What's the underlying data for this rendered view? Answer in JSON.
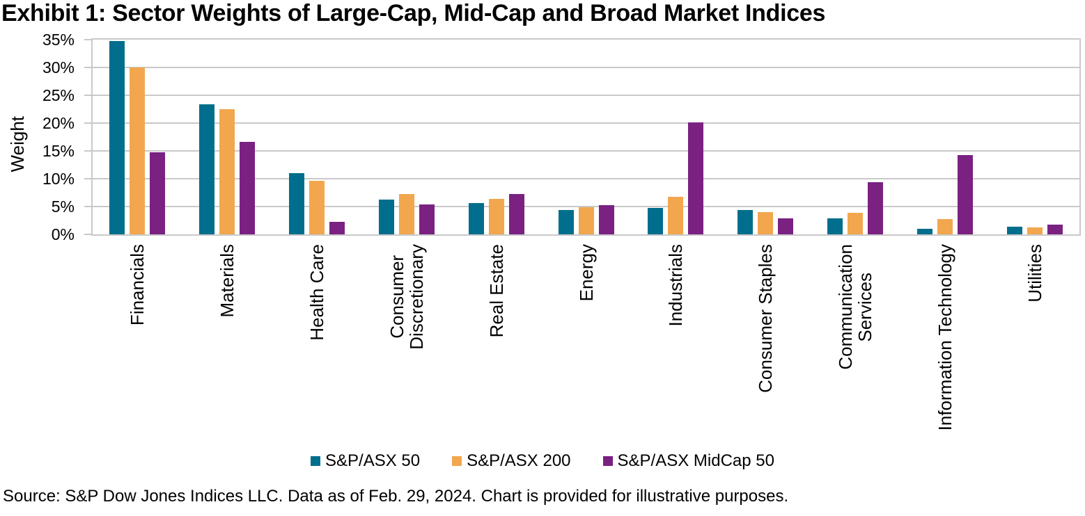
{
  "chart_data": {
    "type": "bar",
    "title": "Exhibit 1: Sector Weights of Large-Cap, Mid-Cap and Broad Market Indices",
    "xlabel": "",
    "ylabel": "Weight",
    "ylim": [
      0,
      35
    ],
    "ytick_step": 5,
    "ytick_labels": [
      "35%",
      "30%",
      "25%",
      "20%",
      "15%",
      "10%",
      "5%",
      "0%"
    ],
    "grid": true,
    "legend_position": "bottom",
    "categories": [
      "Financials",
      "Materials",
      "Health Care",
      "Consumer\nDiscretionary",
      "Real Estate",
      "Energy",
      "Industrials",
      "Consumer Staples",
      "Communication\nServices",
      "Information Technology",
      "Utilities"
    ],
    "series": [
      {
        "name": "S&P/ASX 50",
        "color": "#006E8C",
        "values": [
          34.8,
          23.4,
          11.0,
          6.3,
          5.6,
          4.4,
          4.8,
          4.4,
          2.9,
          1.0,
          1.4
        ]
      },
      {
        "name": "S&P/ASX 200",
        "color": "#F2A74E",
        "values": [
          30.0,
          22.5,
          9.6,
          7.3,
          6.4,
          4.9,
          6.8,
          4.0,
          3.9,
          2.7,
          1.3
        ]
      },
      {
        "name": "S&P/ASX MidCap 50",
        "color": "#7A2182",
        "values": [
          14.8,
          16.6,
          2.3,
          5.4,
          7.2,
          5.3,
          20.1,
          2.9,
          9.4,
          14.2,
          1.8
        ]
      }
    ]
  },
  "colors": {
    "gridline": "#C9C9C9",
    "text": "#000000",
    "background": "#FFFFFF"
  },
  "source_note": "Source: S&P Dow Jones Indices LLC. Data as of Feb. 29, 2024. Chart is provided for illustrative purposes."
}
